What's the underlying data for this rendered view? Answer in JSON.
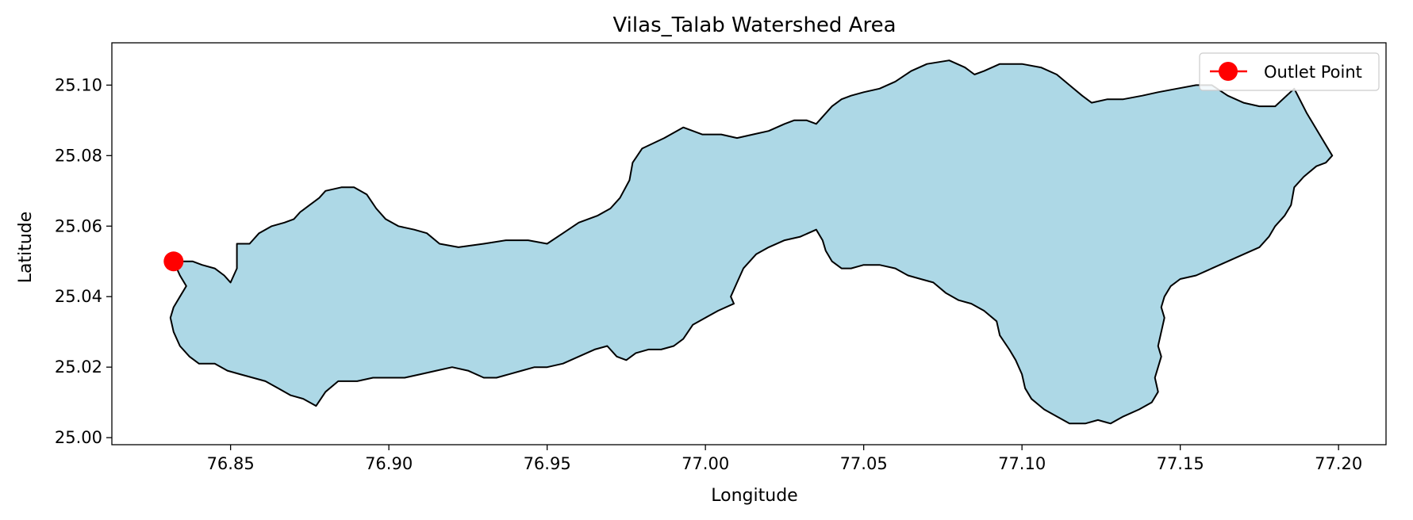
{
  "chart_data": {
    "type": "map",
    "title": "Vilas_Talab Watershed Area",
    "xlabel": "Longitude",
    "ylabel": "Latitude",
    "xlim": [
      76.8125,
      77.215
    ],
    "ylim": [
      24.998,
      25.112
    ],
    "xticks": [
      76.85,
      76.9,
      76.95,
      77.0,
      77.05,
      77.1,
      77.15,
      77.2
    ],
    "xtick_labels": [
      "76.85",
      "76.90",
      "76.95",
      "77.00",
      "77.05",
      "77.10",
      "77.15",
      "77.20"
    ],
    "yticks": [
      25.0,
      25.02,
      25.04,
      25.06,
      25.08,
      25.1
    ],
    "ytick_labels": [
      "25.00",
      "25.02",
      "25.04",
      "25.06",
      "25.08",
      "25.10"
    ],
    "legend": {
      "position": "top-right",
      "entries": [
        {
          "label": "Outlet Point",
          "color": "#ff0000"
        }
      ]
    },
    "colors": {
      "fill": "#add8e6",
      "edge": "#000000",
      "outlet": "#ff0000"
    },
    "outlet_point": {
      "lon": 76.832,
      "lat": 25.05
    },
    "watershed_outline": [
      [
        76.832,
        25.05
      ],
      [
        76.838,
        25.05
      ],
      [
        76.841,
        25.049
      ],
      [
        76.845,
        25.048
      ],
      [
        76.848,
        25.046
      ],
      [
        76.85,
        25.044
      ],
      [
        76.852,
        25.048
      ],
      [
        76.852,
        25.055
      ],
      [
        76.856,
        25.055
      ],
      [
        76.859,
        25.058
      ],
      [
        76.863,
        25.06
      ],
      [
        76.867,
        25.061
      ],
      [
        76.87,
        25.062
      ],
      [
        76.872,
        25.064
      ],
      [
        76.875,
        25.066
      ],
      [
        76.878,
        25.068
      ],
      [
        76.88,
        25.07
      ],
      [
        76.885,
        25.071
      ],
      [
        76.889,
        25.071
      ],
      [
        76.893,
        25.069
      ],
      [
        76.896,
        25.065
      ],
      [
        76.899,
        25.062
      ],
      [
        76.903,
        25.06
      ],
      [
        76.908,
        25.059
      ],
      [
        76.912,
        25.058
      ],
      [
        76.916,
        25.055
      ],
      [
        76.922,
        25.054
      ],
      [
        76.93,
        25.055
      ],
      [
        76.937,
        25.056
      ],
      [
        76.944,
        25.056
      ],
      [
        76.95,
        25.055
      ],
      [
        76.955,
        25.058
      ],
      [
        76.96,
        25.061
      ],
      [
        76.966,
        25.063
      ],
      [
        76.97,
        25.065
      ],
      [
        76.973,
        25.068
      ],
      [
        76.976,
        25.073
      ],
      [
        76.977,
        25.078
      ],
      [
        76.98,
        25.082
      ],
      [
        76.987,
        25.085
      ],
      [
        76.993,
        25.088
      ],
      [
        76.999,
        25.086
      ],
      [
        77.005,
        25.086
      ],
      [
        77.01,
        25.085
      ],
      [
        77.015,
        25.086
      ],
      [
        77.02,
        25.087
      ],
      [
        77.025,
        25.089
      ],
      [
        77.028,
        25.09
      ],
      [
        77.032,
        25.09
      ],
      [
        77.035,
        25.089
      ],
      [
        77.04,
        25.094
      ],
      [
        77.043,
        25.096
      ],
      [
        77.046,
        25.097
      ],
      [
        77.05,
        25.098
      ],
      [
        77.055,
        25.099
      ],
      [
        77.06,
        25.101
      ],
      [
        77.065,
        25.104
      ],
      [
        77.07,
        25.106
      ],
      [
        77.077,
        25.107
      ],
      [
        77.082,
        25.105
      ],
      [
        77.085,
        25.103
      ],
      [
        77.088,
        25.104
      ],
      [
        77.093,
        25.106
      ],
      [
        77.1,
        25.106
      ],
      [
        77.106,
        25.105
      ],
      [
        77.111,
        25.103
      ],
      [
        77.115,
        25.1
      ],
      [
        77.119,
        25.097
      ],
      [
        77.122,
        25.095
      ],
      [
        77.127,
        25.096
      ],
      [
        77.132,
        25.096
      ],
      [
        77.138,
        25.097
      ],
      [
        77.143,
        25.098
      ],
      [
        77.149,
        25.099
      ],
      [
        77.155,
        25.1
      ],
      [
        77.16,
        25.1
      ],
      [
        77.165,
        25.097
      ],
      [
        77.17,
        25.095
      ],
      [
        77.175,
        25.094
      ],
      [
        77.18,
        25.094
      ],
      [
        77.186,
        25.099
      ],
      [
        77.19,
        25.092
      ],
      [
        77.194,
        25.086
      ],
      [
        77.198,
        25.08
      ],
      [
        77.196,
        25.078
      ],
      [
        77.193,
        25.077
      ],
      [
        77.189,
        25.074
      ],
      [
        77.186,
        25.071
      ],
      [
        77.185,
        25.066
      ],
      [
        77.183,
        25.063
      ],
      [
        77.18,
        25.06
      ],
      [
        77.178,
        25.057
      ],
      [
        77.175,
        25.054
      ],
      [
        77.17,
        25.052
      ],
      [
        77.165,
        25.05
      ],
      [
        77.16,
        25.048
      ],
      [
        77.155,
        25.046
      ],
      [
        77.15,
        25.045
      ],
      [
        77.147,
        25.043
      ],
      [
        77.145,
        25.04
      ],
      [
        77.144,
        25.037
      ],
      [
        77.145,
        25.034
      ],
      [
        77.144,
        25.03
      ],
      [
        77.143,
        25.026
      ],
      [
        77.144,
        25.023
      ],
      [
        77.143,
        25.02
      ],
      [
        77.142,
        25.017
      ],
      [
        77.143,
        25.013
      ],
      [
        77.141,
        25.01
      ],
      [
        77.137,
        25.008
      ],
      [
        77.132,
        25.006
      ],
      [
        77.128,
        25.004
      ],
      [
        77.124,
        25.005
      ],
      [
        77.12,
        25.004
      ],
      [
        77.115,
        25.004
      ],
      [
        77.111,
        25.006
      ],
      [
        77.107,
        25.008
      ],
      [
        77.103,
        25.011
      ],
      [
        77.101,
        25.014
      ],
      [
        77.1,
        25.018
      ],
      [
        77.098,
        25.022
      ],
      [
        77.096,
        25.025
      ],
      [
        77.093,
        25.029
      ],
      [
        77.092,
        25.033
      ],
      [
        77.088,
        25.036
      ],
      [
        77.084,
        25.038
      ],
      [
        77.08,
        25.039
      ],
      [
        77.076,
        25.041
      ],
      [
        77.072,
        25.044
      ],
      [
        77.068,
        25.045
      ],
      [
        77.064,
        25.046
      ],
      [
        77.06,
        25.048
      ],
      [
        77.055,
        25.049
      ],
      [
        77.05,
        25.049
      ],
      [
        77.046,
        25.048
      ],
      [
        77.043,
        25.048
      ],
      [
        77.04,
        25.05
      ],
      [
        77.038,
        25.053
      ],
      [
        77.037,
        25.056
      ],
      [
        77.035,
        25.059
      ],
      [
        77.03,
        25.057
      ],
      [
        77.025,
        25.056
      ],
      [
        77.02,
        25.054
      ],
      [
        77.016,
        25.052
      ],
      [
        77.012,
        25.048
      ],
      [
        77.01,
        25.044
      ],
      [
        77.008,
        25.04
      ],
      [
        77.009,
        25.038
      ],
      [
        77.004,
        25.036
      ],
      [
        77.0,
        25.034
      ],
      [
        76.996,
        25.032
      ],
      [
        76.993,
        25.028
      ],
      [
        76.99,
        25.026
      ],
      [
        76.986,
        25.025
      ],
      [
        76.982,
        25.025
      ],
      [
        76.978,
        25.024
      ],
      [
        76.975,
        25.022
      ],
      [
        76.972,
        25.023
      ],
      [
        76.969,
        25.026
      ],
      [
        76.965,
        25.025
      ],
      [
        76.96,
        25.023
      ],
      [
        76.955,
        25.021
      ],
      [
        76.95,
        25.02
      ],
      [
        76.946,
        25.02
      ],
      [
        76.942,
        25.019
      ],
      [
        76.938,
        25.018
      ],
      [
        76.934,
        25.017
      ],
      [
        76.93,
        25.017
      ],
      [
        76.925,
        25.019
      ],
      [
        76.92,
        25.02
      ],
      [
        76.915,
        25.019
      ],
      [
        76.91,
        25.018
      ],
      [
        76.905,
        25.017
      ],
      [
        76.9,
        25.017
      ],
      [
        76.895,
        25.017
      ],
      [
        76.89,
        25.016
      ],
      [
        76.884,
        25.016
      ],
      [
        76.88,
        25.013
      ],
      [
        76.877,
        25.009
      ],
      [
        76.873,
        25.011
      ],
      [
        76.869,
        25.012
      ],
      [
        76.865,
        25.014
      ],
      [
        76.861,
        25.016
      ],
      [
        76.857,
        25.017
      ],
      [
        76.853,
        25.018
      ],
      [
        76.849,
        25.019
      ],
      [
        76.845,
        25.021
      ],
      [
        76.84,
        25.021
      ],
      [
        76.837,
        25.023
      ],
      [
        76.834,
        25.026
      ],
      [
        76.832,
        25.03
      ],
      [
        76.831,
        25.034
      ],
      [
        76.832,
        25.037
      ],
      [
        76.834,
        25.04
      ],
      [
        76.836,
        25.043
      ],
      [
        76.834,
        25.046
      ],
      [
        76.832,
        25.05
      ]
    ]
  }
}
